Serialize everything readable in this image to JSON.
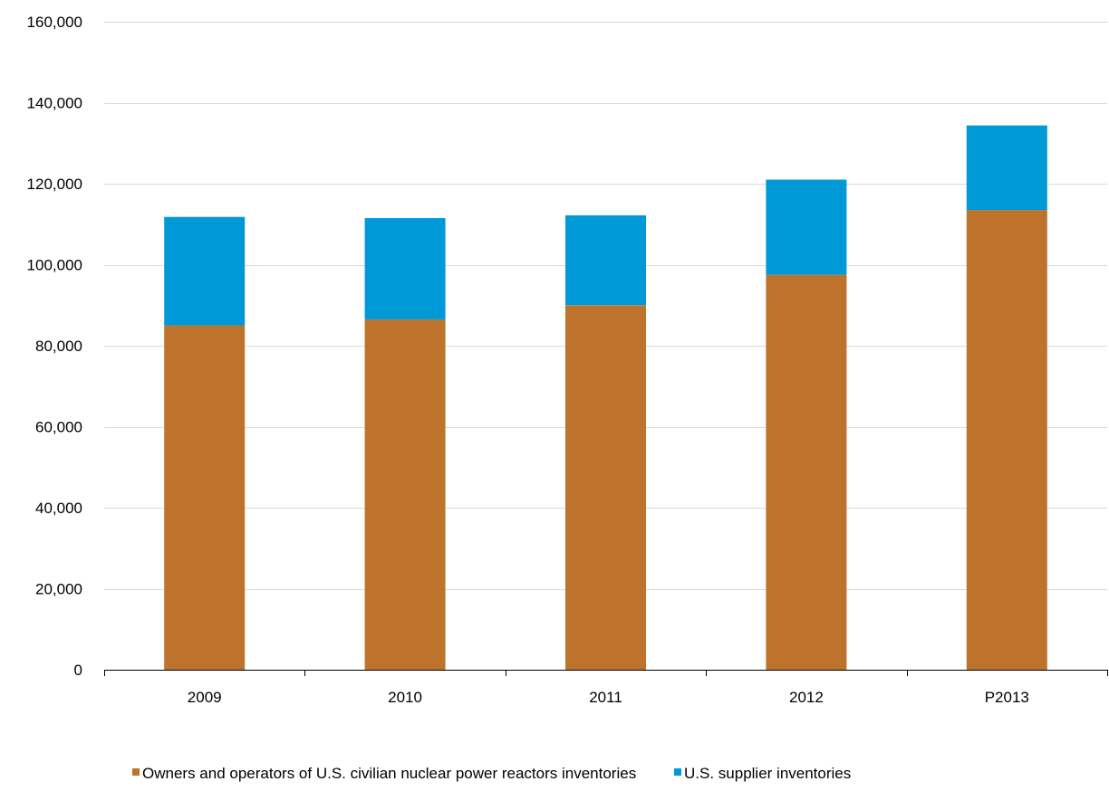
{
  "chart_data": {
    "type": "bar",
    "stacked": true,
    "categories": [
      "2009",
      "2010",
      "2011",
      "2012",
      "P2013"
    ],
    "series": [
      {
        "name": "Owners and operators of U.S. civilian nuclear power reactors inventories",
        "color": "#bd732c",
        "values": [
          85000,
          86500,
          90000,
          97500,
          113500
        ]
      },
      {
        "name": "U.S. supplier inventories",
        "color": "#0099d8",
        "values": [
          26800,
          25000,
          22200,
          23500,
          20900
        ]
      }
    ],
    "ylim": [
      0,
      160000
    ],
    "yticks": [
      0,
      20000,
      40000,
      60000,
      80000,
      100000,
      120000,
      140000,
      160000
    ],
    "ytick_labels": [
      "0",
      "20,000",
      "40,000",
      "60,000",
      "80,000",
      "100,000",
      "120,000",
      "140,000",
      "160,000"
    ],
    "grid": true,
    "gridline_color": "#d9d9d9",
    "legend_position": "bottom",
    "title": "",
    "xlabel": "",
    "ylabel": ""
  }
}
